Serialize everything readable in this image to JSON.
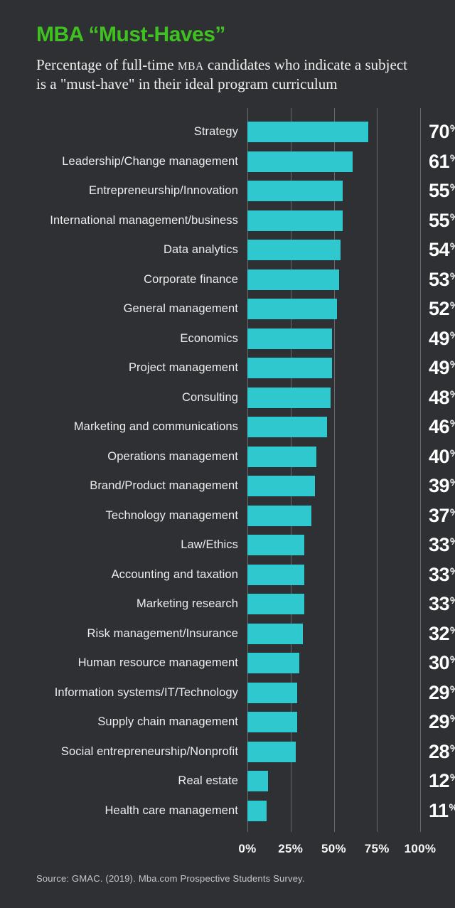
{
  "header": {
    "title": "MBA “Must-Haves”",
    "subtitle_line1_prefix": "Percentage of full-time ",
    "subtitle_mba": "MBA",
    "subtitle_line1_suffix": " candidates who indicate a subject",
    "subtitle_line2": "is a \"must-have\" in their ideal program curriculum"
  },
  "chart_data": {
    "type": "bar",
    "orientation": "horizontal",
    "title": "MBA “Must-Haves”",
    "xlabel": "",
    "ylabel": "",
    "xlim": [
      0,
      100
    ],
    "value_suffix": "%",
    "grid": true,
    "bar_color": "#2ec8ce",
    "background_color": "#2f3033",
    "title_color": "#3fc121",
    "categories": [
      "Strategy",
      "Leadership/Change management",
      "Entrepreneurship/Innovation",
      "International management/business",
      "Data analytics",
      "Corporate finance",
      "General management",
      "Economics",
      "Project management",
      "Consulting",
      "Marketing and communications",
      "Operations management",
      "Brand/Product management",
      "Technology management",
      "Law/Ethics",
      "Accounting and taxation",
      "Marketing research",
      "Risk management/Insurance",
      "Human resource management",
      "Information systems/IT/Technology",
      "Supply chain management",
      "Social entrepreneurship/Nonprofit",
      "Real estate",
      "Health care management"
    ],
    "values": [
      70,
      61,
      55,
      55,
      54,
      53,
      52,
      49,
      49,
      48,
      46,
      40,
      39,
      37,
      33,
      33,
      33,
      32,
      30,
      29,
      29,
      28,
      12,
      11
    ],
    "x_ticks": [
      {
        "label": "0%",
        "value": 0
      },
      {
        "label": "25%",
        "value": 25
      },
      {
        "label": "50%",
        "value": 50
      },
      {
        "label": "75%",
        "value": 75
      },
      {
        "label": "100%",
        "value": 100
      }
    ]
  },
  "footer": {
    "source": "Source: GMAC. (2019). Mba.com Prospective Students Survey."
  }
}
